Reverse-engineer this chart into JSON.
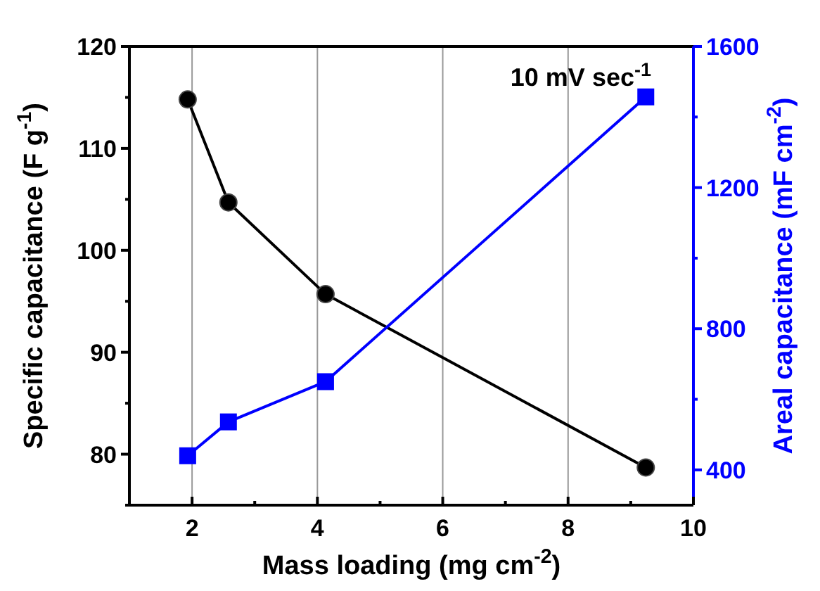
{
  "chart_data": {
    "type": "line",
    "xlabel": "Mass loading (mg cm$^{-2}$)",
    "ylabel": "Specific capacitance (F g$^{-1}$)",
    "y2label": "Areal capacitance (mF cm$^{-2}$)",
    "annotations": [
      "10 mV sec$^{-1}$"
    ],
    "x": [
      1.93,
      2.58,
      4.13,
      9.24
    ],
    "series": [
      {
        "color": "#000000",
        "marker": "circle",
        "values": [
          114.8,
          104.7,
          95.7,
          78.7
        ]
      },
      {
        "color": "#0000ff",
        "marker": "square",
        "axis": "y2",
        "values": [
          440,
          536,
          650,
          1457
        ]
      }
    ],
    "xlim": [
      1,
      10
    ],
    "xticks": [
      2,
      4,
      6,
      8,
      10
    ],
    "ylim": [
      75,
      120
    ],
    "yticks": [
      80,
      90,
      100,
      110,
      120
    ],
    "y2lim": [
      300,
      1600
    ],
    "y2ticks": [
      400,
      800,
      1200,
      1600
    ],
    "grid": "x",
    "line_style": "solid"
  }
}
